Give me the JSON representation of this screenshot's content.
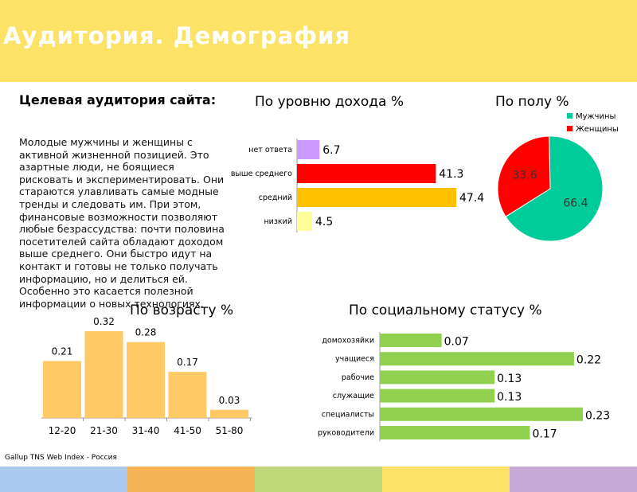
{
  "header": {
    "title": "Аудитория. Демография"
  },
  "description": {
    "heading": "Целевая аудитория сайта:",
    "body": "Молодые мужчины и женщины с активной жизненной позицией. Это азартные люди, не боящиеся рисковать и экспериментировать. Они стараются улавливать самые модные тренды и следовать им. При этом, финансовые возможности позволяют любые безрассудства: почти половина посетителей сайта обладают доходом выше среднего. Они быстро идут на контакт и готовы не только получать информацию, но и делиться ей. Особенно это касается полезной информации о новых технологиях."
  },
  "source": "Gallup TNS Web Index - Россия",
  "colors": {
    "header": "#fce368",
    "footer": [
      "#a9c9ee",
      "#f6b355",
      "#bfd97a",
      "#fce368",
      "#c7a9d6"
    ]
  },
  "chart_data": [
    {
      "type": "bar",
      "orientation": "horizontal",
      "title": "По уровню дохода %",
      "categories": [
        "нет ответа",
        "выше среднего",
        "средний",
        "низкий"
      ],
      "values": [
        6.7,
        41.3,
        47.4,
        4.5
      ],
      "colors": [
        "#cc99ff",
        "#ff0000",
        "#ffc000",
        "#ffff99"
      ],
      "xlim": [
        0,
        47.4
      ],
      "grid": false,
      "legend": "none"
    },
    {
      "type": "pie",
      "title": "По полу %",
      "labels": [
        "Мужчины",
        "Женщины"
      ],
      "values": [
        66.4,
        33.6
      ],
      "colors": [
        "#00cc99",
        "#ff0000"
      ],
      "legend": "top"
    },
    {
      "type": "bar",
      "title": "По возрасту %",
      "categories": [
        "12-20",
        "21-30",
        "31-40",
        "41-50",
        "51-80"
      ],
      "values": [
        0.21,
        0.32,
        0.28,
        0.17,
        0.03
      ],
      "color": "#ffc966",
      "ylim": [
        0,
        0.32
      ],
      "grid": false,
      "legend": "none"
    },
    {
      "type": "bar",
      "orientation": "horizontal",
      "title": "По социальному  статусу %",
      "categories": [
        "домохозяйки",
        "учащиеся",
        "рабочие",
        "служащие",
        "специалисты",
        "руководители"
      ],
      "values": [
        0.07,
        0.22,
        0.13,
        0.13,
        0.23,
        0.17
      ],
      "color": "#92d050",
      "xlim": [
        0,
        0.23
      ],
      "grid": false,
      "legend": "none"
    }
  ]
}
